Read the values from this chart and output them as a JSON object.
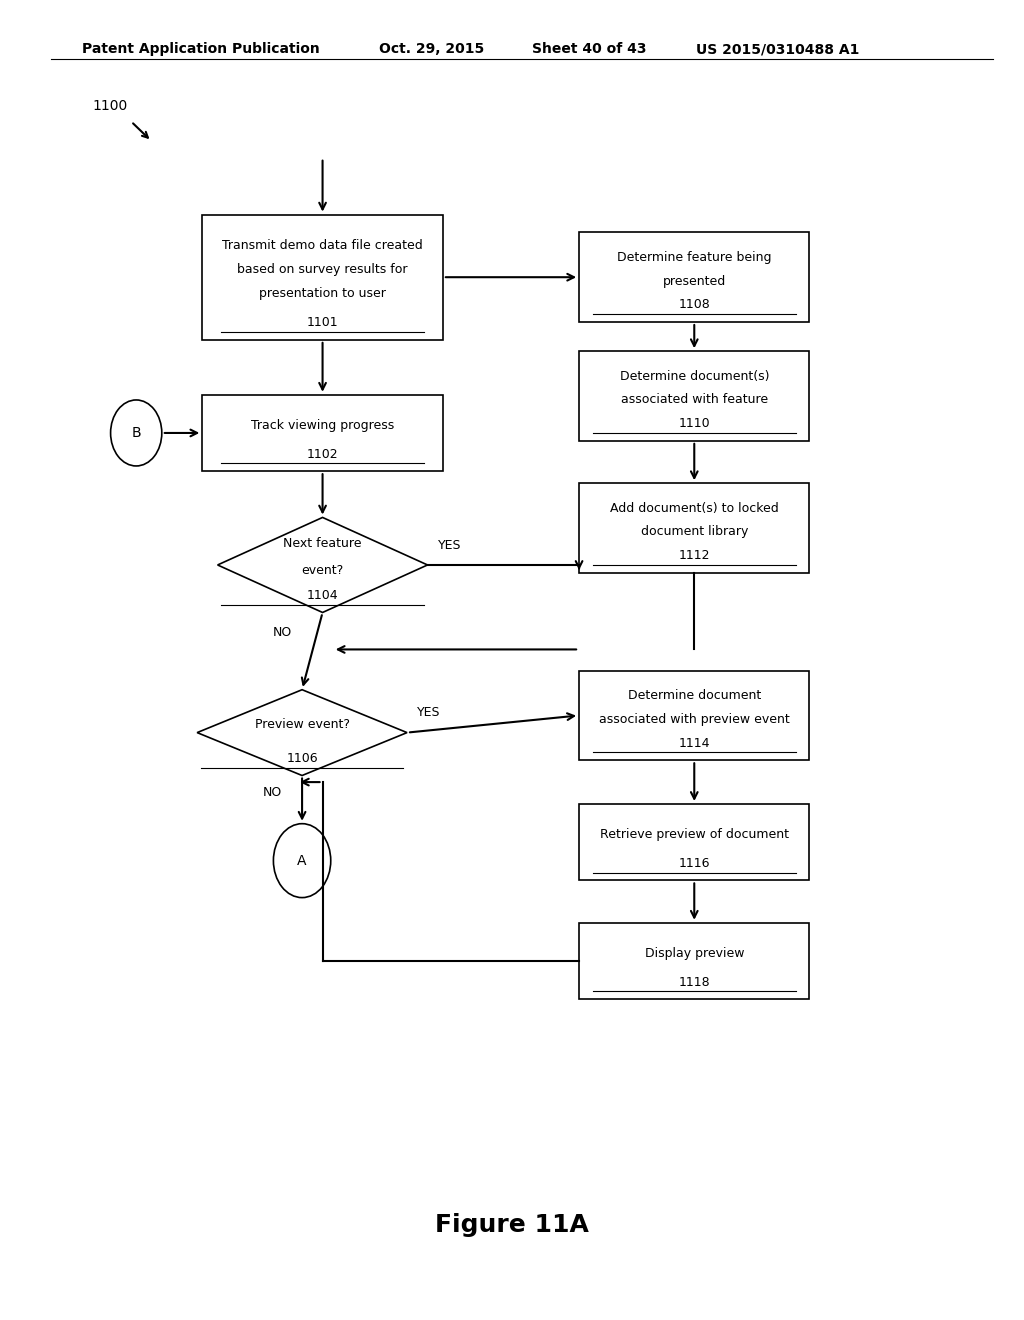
{
  "title_header": "Patent Application Publication",
  "title_date": "Oct. 29, 2015",
  "title_sheet": "Sheet 40 of 43",
  "title_patent": "US 2015/0310488 A1",
  "figure_label": "Figure 11A",
  "diagram_label": "1100",
  "background_color": "#ffffff"
}
